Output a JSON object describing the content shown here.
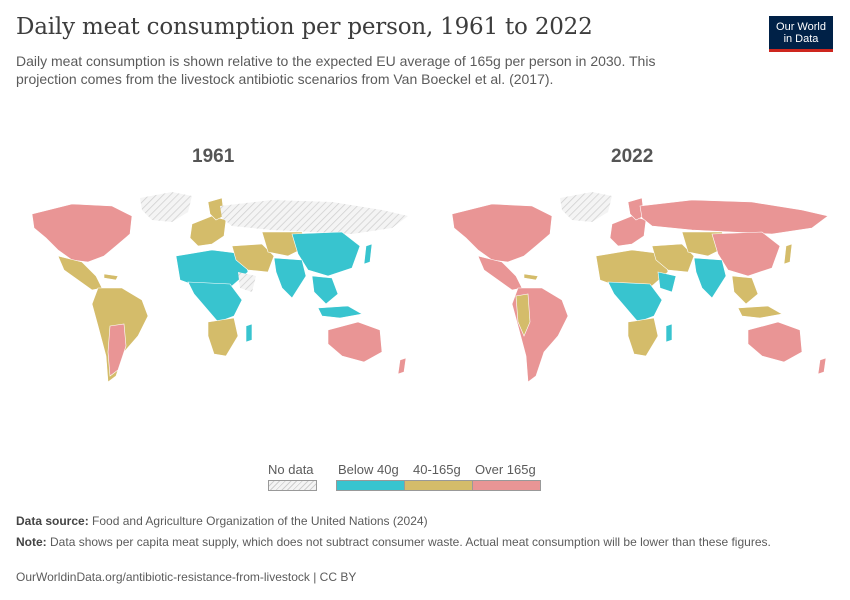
{
  "header": {
    "title": "Daily meat consumption per person, 1961 to 2022",
    "subtitle": "Daily meat consumption is shown relative to the expected EU average of 165g per person in 2030. This projection comes from the livestock antibiotic scenarios from Van Boeckel et al. (2017).",
    "logo_line1": "Our World",
    "logo_line2": "in Data"
  },
  "maps": [
    {
      "year_label": "1961"
    },
    {
      "year_label": "2022"
    }
  ],
  "legend": {
    "no_data": "No data",
    "below": "Below 40g",
    "mid": "40-165g",
    "over": "Over 165g"
  },
  "colors": {
    "no_data": "#e6e6e6",
    "below": "#38c4cf",
    "mid": "#d4bc6a",
    "over": "#e99595"
  },
  "footer": {
    "source_label": "Data source:",
    "source_text": "Food and Agriculture Organization of the United Nations (2024)",
    "note_label": "Note:",
    "note_text": "Data shows per capita meat supply, which does not subtract consumer waste. Actual meat consumption will be lower than these figures.",
    "url": "OurWorldinData.org/antibiotic-resistance-from-livestock | CC BY"
  }
}
